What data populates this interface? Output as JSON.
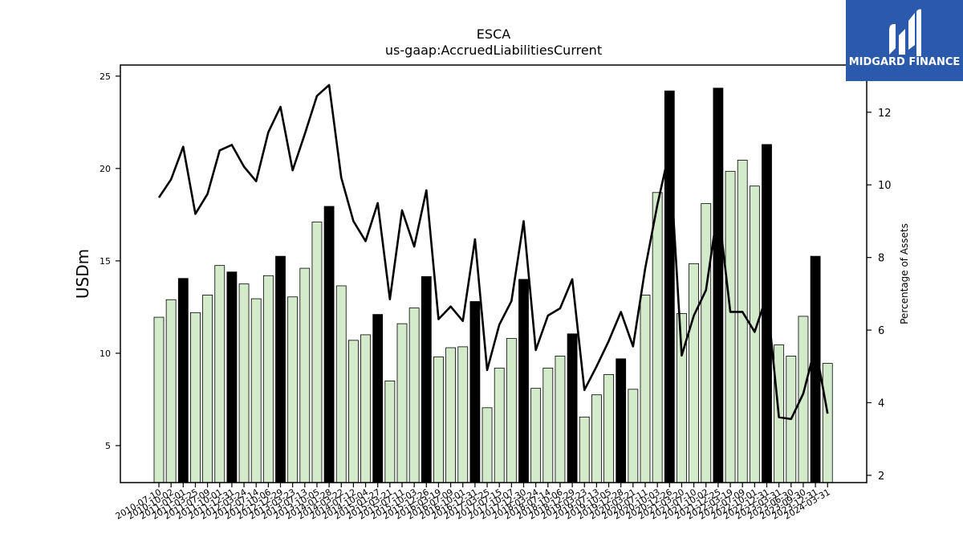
{
  "chart_data": {
    "type": "bar",
    "title": "ESCA",
    "subtitle": "us-gaap:AccruedLiabilitiesCurrent",
    "ylabel": "USDm",
    "y2label": "Percentage of Assets",
    "ylim": [
      3,
      25.6
    ],
    "y2lim": [
      1.8,
      13.3
    ],
    "yticks": [
      5,
      10,
      15,
      20,
      25
    ],
    "y2ticks": [
      2,
      4,
      6,
      8,
      10,
      12
    ],
    "categories": [
      "2010-07-10",
      "2010-10-02",
      "2011-01-01",
      "2011-03-25",
      "2011-07-09",
      "2011-10-01",
      "2011-12-31",
      "2012-03-24",
      "2012-07-14",
      "2012-10-06",
      "2012-12-29",
      "2013-03-23",
      "2013-07-13",
      "2013-10-05",
      "2014-01-28",
      "2014-03-22",
      "2014-07-12",
      "2014-10-04",
      "2015-01-27",
      "2015-03-21",
      "2015-07-11",
      "2015-10-03",
      "2015-12-26",
      "2016-03-19",
      "2016-07-09",
      "2016-10-01",
      "2016-12-31",
      "2017-03-25",
      "2017-07-15",
      "2017-10-07",
      "2017-12-30",
      "2018-03-24",
      "2018-07-14",
      "2018-10-06",
      "2018-12-29",
      "2019-03-23",
      "2019-07-13",
      "2019-10-05",
      "2019-12-28",
      "2020-03-21",
      "2020-07-11",
      "2020-10-03",
      "2020-12-26",
      "2021-03-20",
      "2021-07-10",
      "2021-10-02",
      "2021-12-25",
      "2022-03-19",
      "2022-07-09",
      "2022-10-01",
      "2022-12-31",
      "2023-03-31",
      "2023-06-30",
      "2023-09-30",
      "2023-12-31",
      "2024-03-31"
    ],
    "series": [
      {
        "type": "bar",
        "axis": "left",
        "values": [
          11.95,
          12.9,
          14.05,
          12.2,
          13.15,
          14.75,
          14.4,
          13.75,
          12.95,
          14.2,
          15.25,
          13.05,
          14.6,
          17.1,
          17.95,
          13.65,
          10.7,
          11.0,
          12.1,
          8.5,
          11.6,
          12.45,
          14.15,
          9.8,
          10.3,
          10.35,
          12.8,
          7.05,
          9.2,
          10.8,
          14.0,
          8.1,
          9.2,
          9.85,
          11.05,
          6.55,
          7.75,
          8.85,
          9.7,
          8.05,
          13.15,
          18.7,
          24.2,
          12.15,
          14.85,
          18.1,
          24.35,
          19.85,
          20.45,
          19.05,
          21.3,
          10.45,
          9.85,
          12.0,
          15.25,
          9.45
        ],
        "highlight": [
          false,
          false,
          true,
          false,
          false,
          false,
          true,
          false,
          false,
          false,
          true,
          false,
          false,
          false,
          true,
          false,
          false,
          false,
          true,
          false,
          false,
          false,
          true,
          false,
          false,
          false,
          true,
          false,
          false,
          false,
          true,
          false,
          false,
          false,
          true,
          false,
          false,
          false,
          true,
          false,
          false,
          false,
          true,
          false,
          false,
          false,
          true,
          false,
          false,
          false,
          true,
          false,
          false,
          false,
          true,
          false
        ]
      },
      {
        "type": "line",
        "axis": "right",
        "values": [
          9.65,
          10.15,
          11.05,
          9.2,
          9.75,
          10.95,
          11.1,
          10.5,
          10.1,
          11.45,
          12.15,
          10.4,
          11.4,
          12.45,
          12.75,
          10.2,
          9.0,
          8.45,
          9.5,
          6.85,
          9.3,
          8.3,
          9.85,
          6.3,
          6.65,
          6.25,
          8.5,
          4.9,
          6.15,
          6.8,
          9.0,
          5.45,
          6.4,
          6.6,
          7.4,
          4.35,
          5.0,
          5.7,
          6.5,
          5.55,
          7.7,
          9.45,
          10.95,
          5.3,
          6.4,
          7.1,
          9.4,
          6.5,
          6.5,
          5.95,
          6.95,
          3.6,
          3.55,
          4.25,
          5.55,
          3.7
        ]
      }
    ],
    "colors": {
      "bar": "#d4ebcb",
      "bar_highlight": "#000000",
      "line": "#000000",
      "bar_edge": "#000000"
    }
  },
  "logo": {
    "text": "MIDGARD FINANCE",
    "background": "#2b5aad",
    "icon": "midgard-logo-icon"
  }
}
